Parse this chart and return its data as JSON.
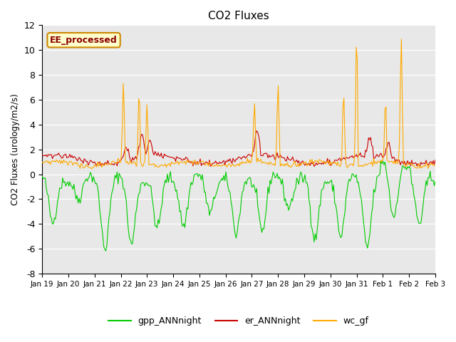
{
  "title": "CO2 Fluxes",
  "ylabel": "CO2 Fluxes (urology/m2/s)",
  "ylim": [
    -8,
    12
  ],
  "yticks": [
    -8,
    -6,
    -4,
    -2,
    0,
    2,
    4,
    6,
    8,
    10,
    12
  ],
  "xtick_labels": [
    "Jan 19",
    "Jan 20",
    "Jan 21",
    "Jan 22",
    "Jan 23",
    "Jan 24",
    "Jan 25",
    "Jan 26",
    "Jan 27",
    "Jan 28",
    "Jan 29",
    "Jan 30",
    "Jan 31",
    "Feb 1",
    "Feb 2",
    "Feb 3"
  ],
  "gpp_color": "#00cc00",
  "er_color": "#cc0000",
  "wc_color": "#ffaa00",
  "annotation_text": "EE_processed",
  "annotation_bg": "#ffffcc",
  "annotation_edge": "#cc8800",
  "legend_labels": [
    "gpp_ANNnight",
    "er_ANNnight",
    "wc_gf"
  ],
  "bg_color": "#e8e8e8",
  "n_points": 384
}
